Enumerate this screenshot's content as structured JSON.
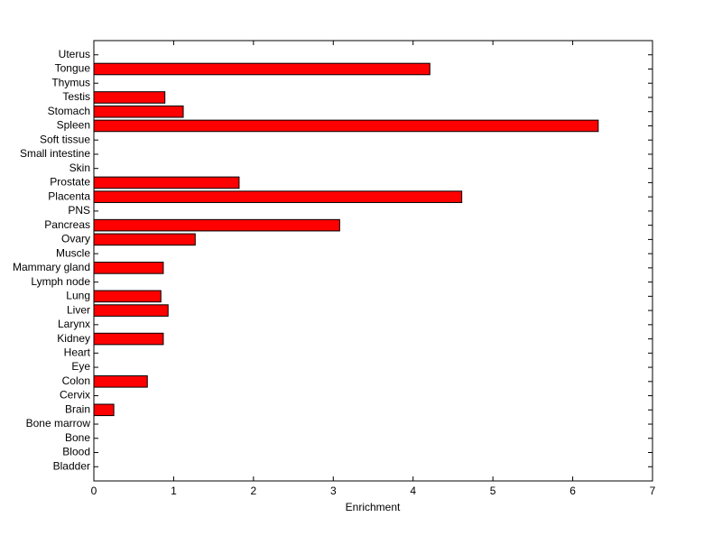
{
  "chart_data": {
    "type": "barh",
    "xlabel": "Enrichment",
    "categories": [
      "Bladder",
      "Blood",
      "Bone",
      "Bone marrow",
      "Brain",
      "Cervix",
      "Colon",
      "Eye",
      "Heart",
      "Kidney",
      "Larynx",
      "Liver",
      "Lung",
      "Lymph node",
      "Mammary gland",
      "Muscle",
      "Ovary",
      "Pancreas",
      "PNS",
      "Placenta",
      "Prostate",
      "Skin",
      "Small intestine",
      "Soft tissue",
      "Spleen",
      "Stomach",
      "Testis",
      "Thymus",
      "Tongue",
      "Uterus"
    ],
    "values": [
      0,
      0,
      0,
      0,
      0.25,
      0,
      0.67,
      0,
      0,
      0.87,
      0,
      0.93,
      0.84,
      0,
      0.87,
      0,
      1.27,
      3.08,
      0,
      4.61,
      1.82,
      0,
      0,
      0,
      6.32,
      1.12,
      0.89,
      0,
      4.21,
      0
    ],
    "color": "#ff0000",
    "xlim": [
      0,
      7
    ],
    "xticks": [
      0,
      1,
      2,
      3,
      4,
      5,
      6,
      7
    ]
  }
}
